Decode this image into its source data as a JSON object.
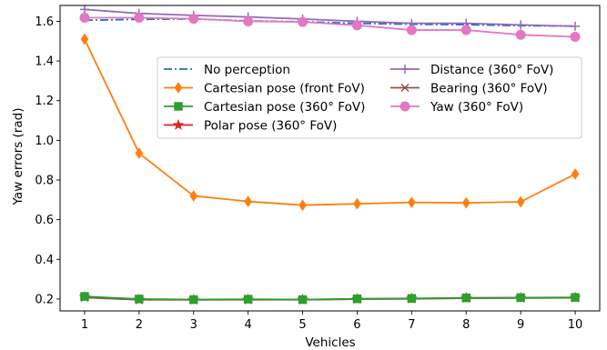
{
  "chart_data": {
    "type": "line",
    "title": "",
    "xlabel": "Vehicles",
    "ylabel": "Yaw errors (rad)",
    "x": [
      1,
      2,
      3,
      4,
      5,
      6,
      7,
      8,
      9,
      10
    ],
    "xticks": [
      "1",
      "2",
      "3",
      "4",
      "5",
      "6",
      "7",
      "8",
      "9",
      "10"
    ],
    "xlim": [
      0.55,
      10.45
    ],
    "ylim": [
      0.14,
      1.68
    ],
    "yticks": [
      "0.2",
      "0.4",
      "0.6",
      "0.8",
      "1.0",
      "1.2",
      "1.4",
      "1.6"
    ],
    "grid": false,
    "legend_position": "center-right",
    "series": [
      {
        "name": "No perception",
        "color": "#1f77b4",
        "marker": "none",
        "dash": "dashdot",
        "values": [
          1.605,
          1.61,
          1.612,
          1.602,
          1.598,
          1.59,
          1.585,
          1.583,
          1.578,
          1.576
        ]
      },
      {
        "name": "Cartesian pose (front FoV)",
        "color": "#ff7f0e",
        "marker": "diamond",
        "dash": "solid",
        "values": [
          1.51,
          0.935,
          0.72,
          0.692,
          0.673,
          0.68,
          0.687,
          0.685,
          0.69,
          0.83
        ]
      },
      {
        "name": "Cartesian pose (360° FoV)",
        "color": "#2ca02c",
        "marker": "square",
        "dash": "solid",
        "values": [
          0.213,
          0.2,
          0.197,
          0.199,
          0.197,
          0.201,
          0.203,
          0.206,
          0.207,
          0.208
        ]
      },
      {
        "name": "Polar pose (360° FoV)",
        "color": "#d62728",
        "marker": "star",
        "dash": "solid",
        "values": [
          0.21,
          0.197,
          0.196,
          0.197,
          0.197,
          0.2,
          0.202,
          0.205,
          0.206,
          0.207
        ]
      },
      {
        "name": "Distance (360° FoV)",
        "color": "#9467bd",
        "marker": "plus",
        "dash": "solid",
        "values": [
          1.66,
          1.64,
          1.63,
          1.622,
          1.612,
          1.6,
          1.59,
          1.59,
          1.582,
          1.575
        ]
      },
      {
        "name": "Bearing (360° FoV)",
        "color": "#8c564b",
        "marker": "x",
        "dash": "solid",
        "values": [
          0.207,
          0.196,
          0.196,
          0.196,
          0.196,
          0.199,
          0.201,
          0.204,
          0.205,
          0.206
        ]
      },
      {
        "name": "Yaw (360° FoV)",
        "color": "#e377c2",
        "marker": "circle",
        "dash": "solid",
        "values": [
          1.618,
          1.618,
          1.613,
          1.6,
          1.597,
          1.58,
          1.556,
          1.556,
          1.532,
          1.522
        ]
      }
    ]
  }
}
